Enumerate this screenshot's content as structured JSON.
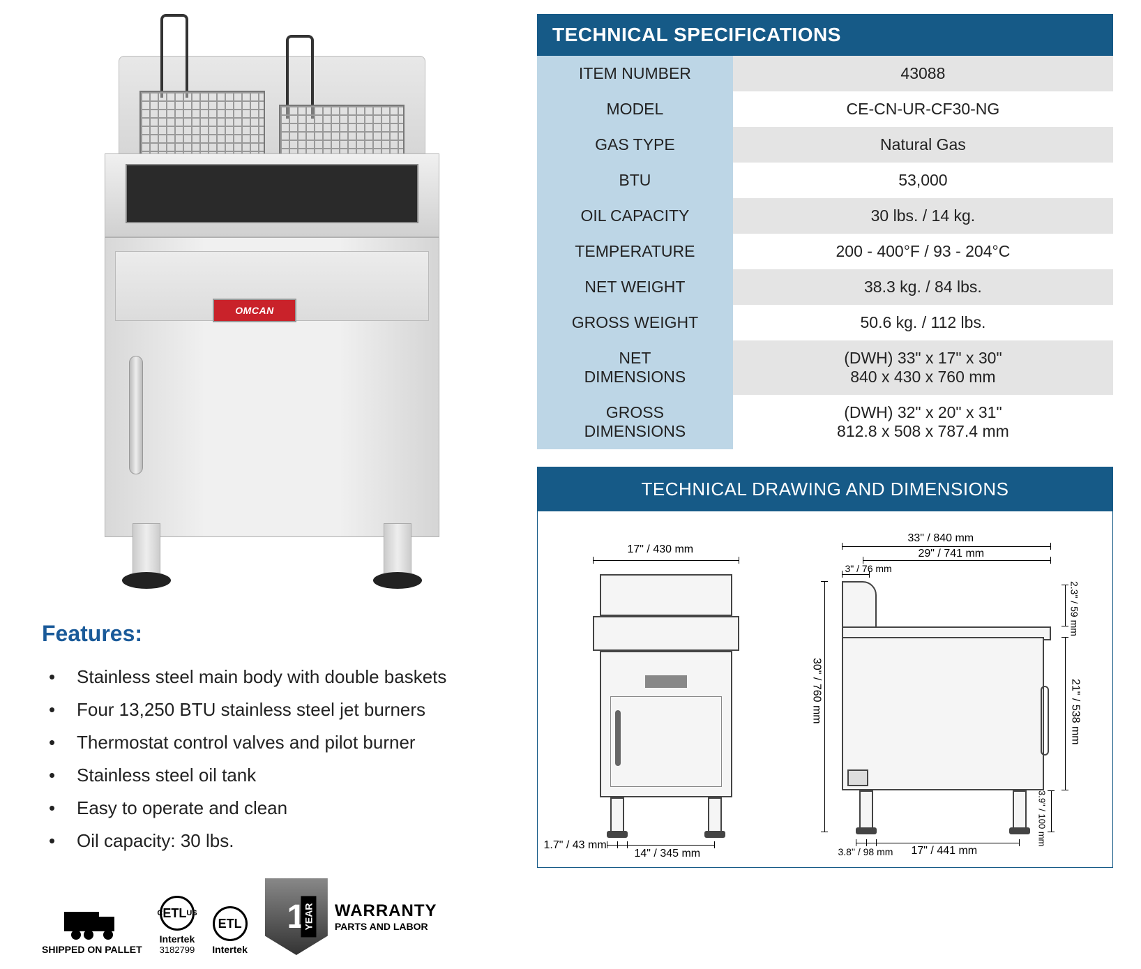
{
  "brand": "OMCAN",
  "features": {
    "heading": "Features:",
    "items": [
      "Stainless steel main body with double baskets",
      "Four 13,250 BTU stainless steel jet burners",
      "Thermostat control valves and pilot burner",
      "Stainless steel oil tank",
      "Easy to operate and clean",
      "Oil capacity: 30 lbs."
    ]
  },
  "badges": {
    "shipped": "SHIPPED ON PALLET",
    "etl1_top": "ETL",
    "etl1_mid": "Intertek",
    "etl1_num": "3182799",
    "etl2_top": "ETL",
    "etl2_mid": "Intertek",
    "warranty_num": "1",
    "warranty_year": "YEAR",
    "warranty_title": "WARRANTY",
    "warranty_sub": "PARTS AND LABOR"
  },
  "specs": {
    "header": "TECHNICAL SPECIFICATIONS",
    "rows": [
      {
        "label": "ITEM NUMBER",
        "value": "43088"
      },
      {
        "label": "MODEL",
        "value": "CE-CN-UR-CF30-NG"
      },
      {
        "label": "GAS TYPE",
        "value": "Natural Gas"
      },
      {
        "label": "BTU",
        "value": "53,000"
      },
      {
        "label": "OIL CAPACITY",
        "value": "30 lbs. / 14 kg."
      },
      {
        "label": "TEMPERATURE",
        "value": "200 - 400°F / 93 - 204°C"
      },
      {
        "label": "NET WEIGHT",
        "value": "38.3 kg. / 84 lbs."
      },
      {
        "label": "GROSS WEIGHT",
        "value": "50.6 kg. / 112 lbs."
      },
      {
        "label": "NET\nDIMENSIONS",
        "value": "(DWH) 33\" x 17\" x 30\"\n840 x 430 x 760 mm"
      },
      {
        "label": "GROSS\nDIMENSIONS",
        "value": "(DWH)  32\" x 20\" x 31\"\n812.8 x 508 x 787.4 mm"
      }
    ]
  },
  "drawing": {
    "header": "TECHNICAL DRAWING AND DIMENSIONS",
    "front": {
      "width_top": "17\" / 430 mm",
      "foot_w": "1.7\" / 43 mm",
      "inner_w": "14\" / 345 mm"
    },
    "side": {
      "total_w": "33\" / 840 mm",
      "top_w": "29\" / 741 mm",
      "back_d": "3\" / 76 mm",
      "height": "30\" / 760 mm",
      "splash_h": "2.3\" / 59 mm",
      "body_h": "21\" / 538 mm",
      "leg_h": "3.9\" / 100 mm",
      "foot_w": "3.8\" / 98 mm",
      "leg_span": "17\" / 441 mm"
    }
  },
  "colors": {
    "header_bg": "#165a87",
    "label_bg": "#bdd6e6",
    "alt_row": "#e4e4e4",
    "features_heading": "#1a5a99",
    "brand_red": "#c9222a"
  }
}
